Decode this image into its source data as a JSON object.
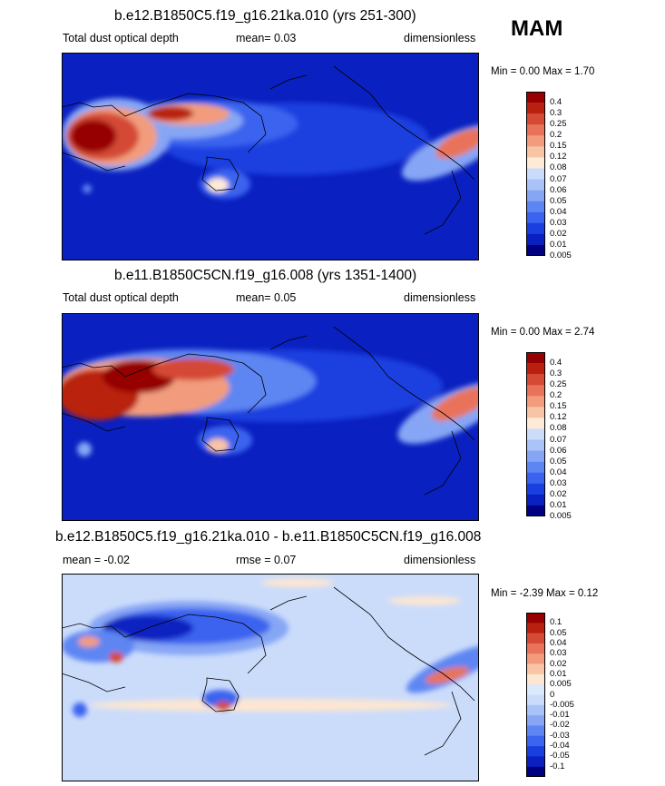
{
  "season": "MAM",
  "colors": {
    "abs_scale": [
      "#000080",
      "#0a20c0",
      "#1a3fe0",
      "#3a63ef",
      "#5d86f3",
      "#86a6f5",
      "#a9c2f8",
      "#cbdcfb",
      "#fdebd8",
      "#f8c4a6",
      "#f29c7d",
      "#e8735a",
      "#d44a35",
      "#b9200f",
      "#960000"
    ],
    "diff_scale": [
      "#000080",
      "#0a20c0",
      "#1a3fe0",
      "#3a63ef",
      "#5d86f3",
      "#86a6f5",
      "#a9c2f8",
      "#cbdcfb",
      "#dce9fb",
      "#fde6d2",
      "#f8c4a6",
      "#f29c7d",
      "#e8735a",
      "#d44a35",
      "#b9200f",
      "#960000"
    ]
  },
  "panels": [
    {
      "id": "p1",
      "title": "b.e12.B1850C5.f19_g16.21ka.010 (yrs 251-300)",
      "left": "Total dust optical depth",
      "mean": "mean=  0.03",
      "units": "dimensionless",
      "minmax": "Min =   0.00 Max =   1.70",
      "bar_labels": [
        "0.4",
        "0.3",
        "0.25",
        "0.2",
        "0.15",
        "0.12",
        "0.08",
        "0.07",
        "0.06",
        "0.05",
        "0.04",
        "0.03",
        "0.02",
        "0.01",
        "0.005"
      ]
    },
    {
      "id": "p2",
      "title": "b.e11.B1850C5CN.f19_g16.008 (yrs 1351-1400)",
      "left": "Total dust optical depth",
      "mean": "mean=  0.05",
      "units": "dimensionless",
      "minmax": "Min =   0.00 Max =   2.74",
      "bar_labels": [
        "0.4",
        "0.3",
        "0.25",
        "0.2",
        "0.15",
        "0.12",
        "0.08",
        "0.07",
        "0.06",
        "0.05",
        "0.04",
        "0.03",
        "0.02",
        "0.01",
        "0.005"
      ]
    },
    {
      "id": "p3",
      "title": "b.e12.B1850C5.f19_g16.21ka.010 - b.e11.B1850C5CN.f19_g16.008",
      "left": "mean =  -0.02",
      "mean": "rmse =  0.07",
      "units": "dimensionless",
      "minmax": "Min =  -2.39 Max =   0.12",
      "bar_labels": [
        "0.1",
        "0.05",
        "0.04",
        "0.03",
        "0.02",
        "0.01",
        "0.005",
        "0",
        "-0.005",
        "-0.01",
        "-0.02",
        "-0.03",
        "-0.04",
        "-0.05",
        "-0.1"
      ]
    }
  ]
}
